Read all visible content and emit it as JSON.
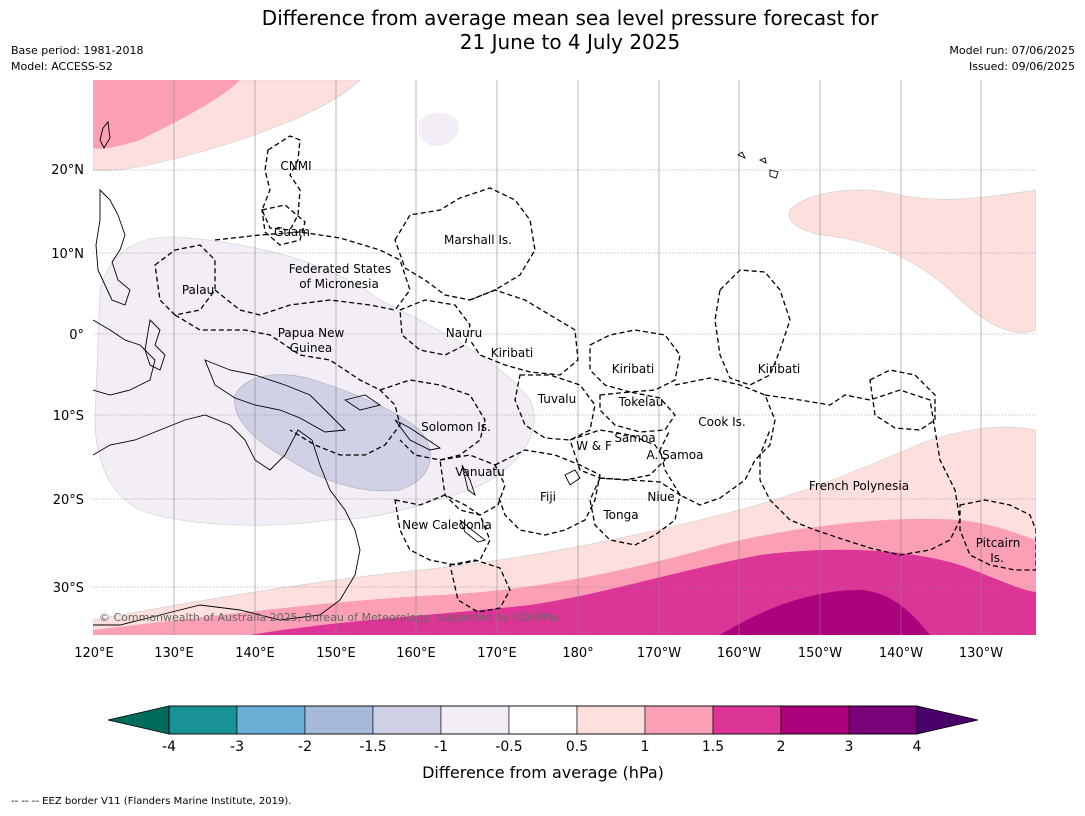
{
  "title_line1": "Difference from average mean sea level pressure forecast for",
  "title_line2": "21 June to 4 July 2025",
  "meta": {
    "base_period": "Base period: 1981-2018",
    "model": "Model: ACCESS-S2",
    "model_run": "Model run: 07/06/2025",
    "issued": "Issued: 09/06/2025"
  },
  "lon_labels": [
    "120°E",
    "130°E",
    "140°E",
    "150°E",
    "160°E",
    "170°E",
    "180°",
    "170°W",
    "160°W",
    "150°W",
    "140°W",
    "130°W"
  ],
  "lat_labels": [
    "20°N",
    "10°N",
    "0°",
    "10°S",
    "20°S",
    "30°S"
  ],
  "region_labels": {
    "cnmi": "CNMI",
    "guam": "Guam",
    "marshall": "Marshall Is.",
    "fsm1": "Federated States",
    "fsm2": "of Micronesia",
    "palau": "Palau",
    "png1": "Papua New",
    "png2": "Guinea",
    "nauru": "Nauru",
    "kiribati_w": "Kiribati",
    "kiribati_c": "Kiribati",
    "kiribati_e": "Kiribati",
    "tuvalu": "Tuvalu",
    "tokelau": "Tokelau",
    "solomon": "Solomon Is.",
    "cook": "Cook Is.",
    "wf": "W & F",
    "samoa": "Samoa",
    "asamoa": "A. Samoa",
    "vanuatu": "Vanuatu",
    "fiji": "Fiji",
    "niue": "Niue",
    "tonga": "Tonga",
    "frenchpoly": "French Polynesia",
    "newcal": "New Caledonia",
    "pitcairn1": "Pitcairn",
    "pitcairn2": "Is."
  },
  "copyright": "© Commonwealth of Australia 2025, Bureau of Meteorology, supported by COSPPac",
  "colorbar": {
    "label": "Difference from average (hPa)",
    "tick_labels": [
      "-4",
      "-3",
      "-2",
      "-1.5",
      "-1",
      "-0.5",
      "0.5",
      "1",
      "1.5",
      "2",
      "3",
      "4"
    ],
    "colors": [
      "#1a9298",
      "#6aaed6",
      "#a7b9d9",
      "#d0d1e6",
      "#f3edf5",
      "#ffffff",
      "#fde0dd",
      "#fa9fb5",
      "#dd3497",
      "#ae017e",
      "#7a0177"
    ],
    "extend_low_color": "#016c59",
    "extend_high_color": "#49006a"
  },
  "footnote": "--  --  -- EEZ border V11 (Flanders Marine Institute, 2019)."
}
